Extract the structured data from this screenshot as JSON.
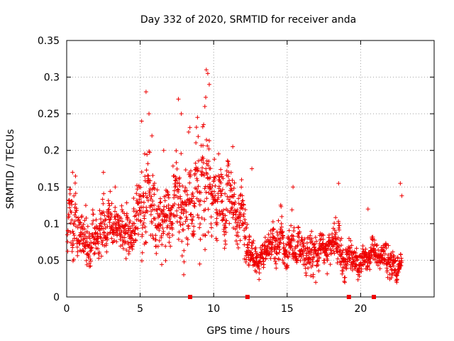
{
  "chart_data": {
    "type": "scatter",
    "title": "Day 332 of 2020, SRMTID for receiver anda",
    "xlabel": "GPS time / hours",
    "ylabel": "SRMTID / TECUs",
    "xlim": [
      0,
      25
    ],
    "ylim": [
      0,
      0.35
    ],
    "x_ticks": [
      0,
      5,
      10,
      15,
      20
    ],
    "x_tick_labels": [
      "0",
      "5",
      "10",
      "15",
      "20"
    ],
    "y_ticks": [
      0,
      0.05,
      0.1,
      0.15,
      0.2,
      0.25,
      0.3,
      0.35
    ],
    "y_tick_labels": [
      "0",
      "0.05",
      "0.1",
      "0.15",
      "0.2",
      "0.25",
      "0.3",
      "0.35"
    ],
    "grid": true,
    "marker": "+",
    "color": "#ee0000",
    "zero_markers_x": [
      8.4,
      12.3,
      19.2,
      20.9
    ],
    "series": [
      {
        "name": "SRMTID",
        "profile_hours": [
          0,
          0.5,
          1,
          1.5,
          2,
          2.5,
          3,
          3.5,
          4,
          4.5,
          5,
          5.5,
          6,
          6.5,
          7,
          7.5,
          8,
          8.5,
          9,
          9.5,
          10,
          10.5,
          11,
          11.5,
          12,
          12.5,
          13,
          13.5,
          14,
          14.5,
          15,
          15.5,
          16,
          16.5,
          17,
          17.5,
          18,
          18.5,
          19,
          19.5,
          20,
          20.5,
          21,
          21.5,
          22,
          22.5,
          22.8
        ],
        "profile_mean": [
          0.1,
          0.11,
          0.07,
          0.07,
          0.09,
          0.1,
          0.1,
          0.09,
          0.09,
          0.08,
          0.13,
          0.14,
          0.12,
          0.11,
          0.1,
          0.13,
          0.14,
          0.13,
          0.15,
          0.18,
          0.12,
          0.13,
          0.15,
          0.12,
          0.11,
          0.06,
          0.06,
          0.06,
          0.07,
          0.07,
          0.08,
          0.08,
          0.06,
          0.07,
          0.07,
          0.06,
          0.06,
          0.07,
          0.05,
          0.05,
          0.05,
          0.06,
          0.06,
          0.06,
          0.05,
          0.04,
          0.05
        ],
        "profile_spread": [
          0.04,
          0.05,
          0.03,
          0.03,
          0.03,
          0.04,
          0.04,
          0.03,
          0.03,
          0.03,
          0.06,
          0.07,
          0.05,
          0.04,
          0.05,
          0.06,
          0.06,
          0.05,
          0.07,
          0.07,
          0.05,
          0.05,
          0.05,
          0.04,
          0.04,
          0.02,
          0.02,
          0.02,
          0.02,
          0.03,
          0.03,
          0.03,
          0.02,
          0.03,
          0.03,
          0.02,
          0.02,
          0.03,
          0.02,
          0.02,
          0.02,
          0.02,
          0.02,
          0.02,
          0.02,
          0.02,
          0.02
        ],
        "sample_count": 1900,
        "outliers": [
          {
            "x": 0.4,
            "y": 0.17
          },
          {
            "x": 0.6,
            "y": 0.165
          },
          {
            "x": 1.3,
            "y": 0.125
          },
          {
            "x": 2.5,
            "y": 0.17
          },
          {
            "x": 3.3,
            "y": 0.15
          },
          {
            "x": 5.1,
            "y": 0.24
          },
          {
            "x": 5.4,
            "y": 0.28
          },
          {
            "x": 5.6,
            "y": 0.25
          },
          {
            "x": 5.8,
            "y": 0.22
          },
          {
            "x": 6.6,
            "y": 0.2
          },
          {
            "x": 7.6,
            "y": 0.27
          },
          {
            "x": 7.8,
            "y": 0.25
          },
          {
            "x": 8.3,
            "y": 0.225
          },
          {
            "x": 8.9,
            "y": 0.245
          },
          {
            "x": 9.4,
            "y": 0.26
          },
          {
            "x": 9.5,
            "y": 0.31
          },
          {
            "x": 9.6,
            "y": 0.305
          },
          {
            "x": 9.7,
            "y": 0.29
          },
          {
            "x": 11.3,
            "y": 0.205
          },
          {
            "x": 11.9,
            "y": 0.16
          },
          {
            "x": 12.6,
            "y": 0.175
          },
          {
            "x": 15.4,
            "y": 0.15
          },
          {
            "x": 18.5,
            "y": 0.155
          },
          {
            "x": 20.5,
            "y": 0.12
          },
          {
            "x": 22.7,
            "y": 0.155
          },
          {
            "x": 22.8,
            "y": 0.138
          }
        ]
      }
    ]
  }
}
